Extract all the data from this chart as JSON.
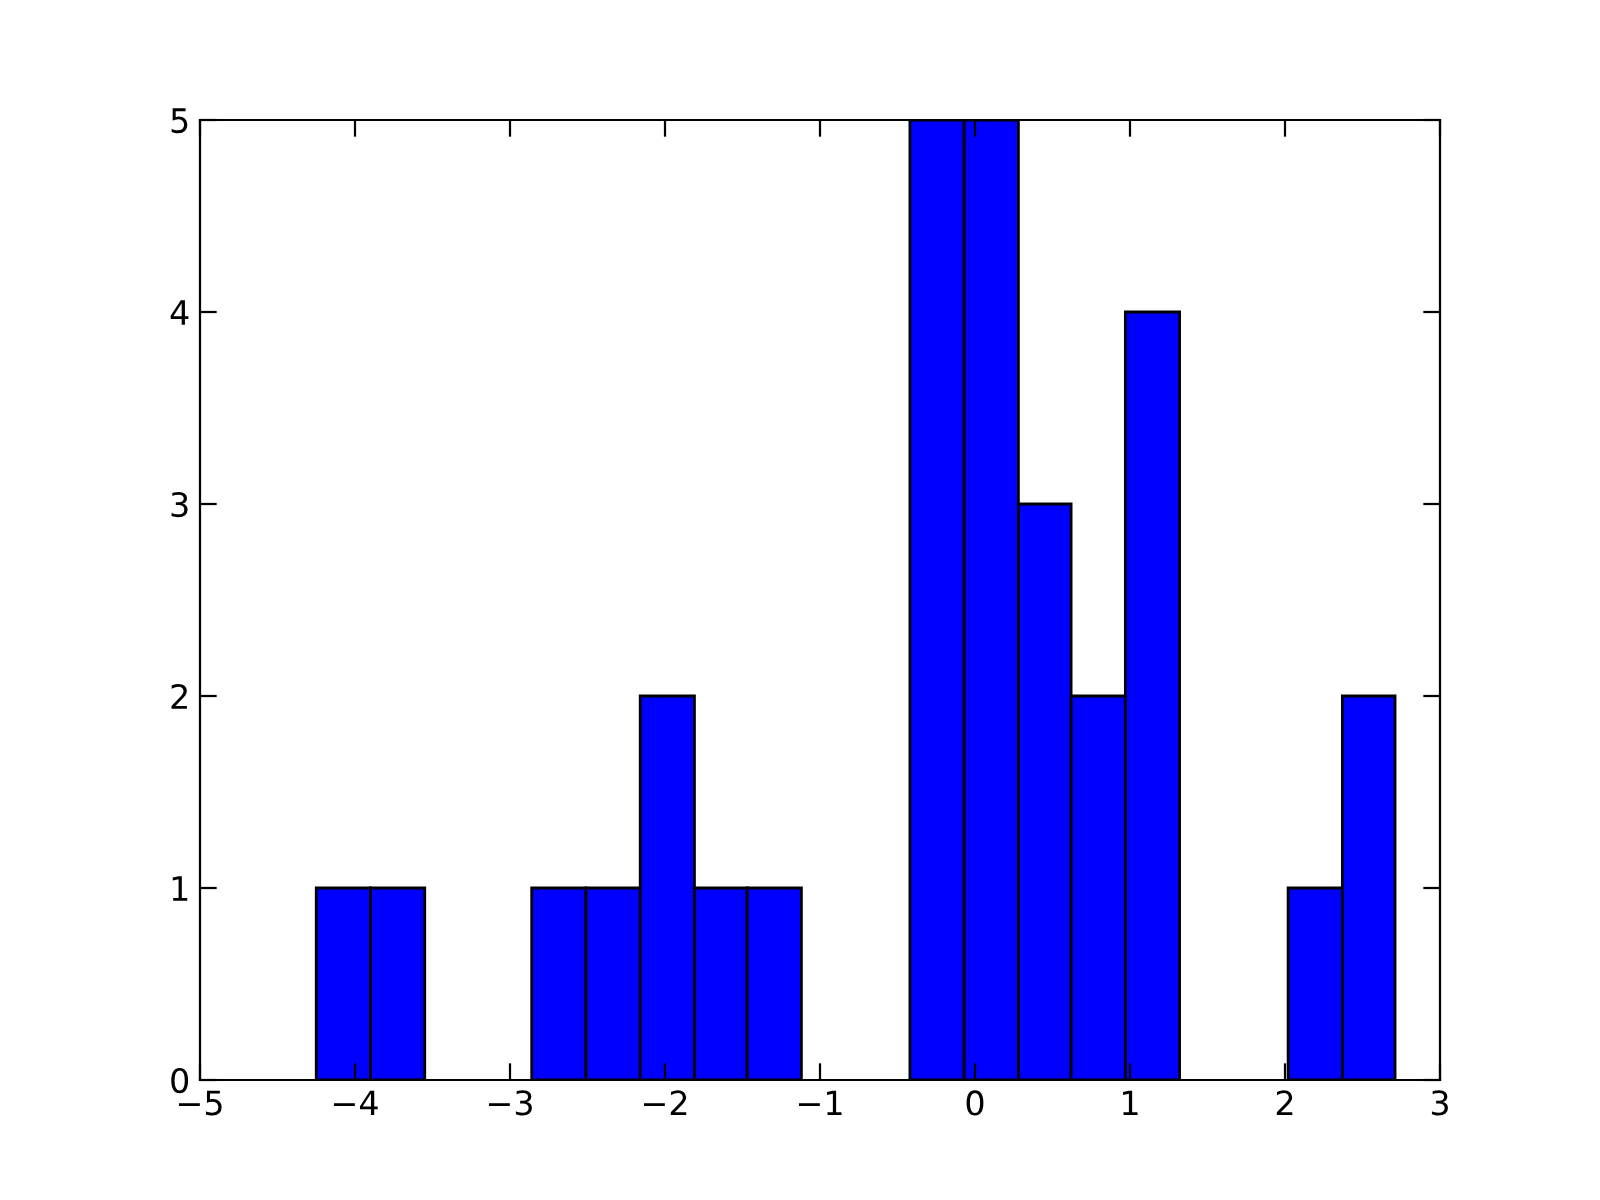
{
  "chart_data": {
    "type": "histogram",
    "bins": [
      -4.25,
      -3.9,
      -3.55,
      -2.86,
      -2.51,
      -2.16,
      -1.81,
      -1.47,
      -1.12,
      -0.42,
      -0.07,
      0.28,
      0.62,
      0.97,
      1.32,
      2.02,
      2.37,
      2.71
    ],
    "values": [
      1,
      1,
      0,
      1,
      1,
      2,
      1,
      1,
      0,
      5,
      5,
      3,
      2,
      4,
      0,
      1,
      2
    ],
    "color": "#0000ff",
    "xlim": [
      -5,
      3
    ],
    "xticks": [
      {
        "value": -5,
        "label": "−5"
      },
      {
        "value": -4,
        "label": "−4"
      },
      {
        "value": -3,
        "label": "−3"
      },
      {
        "value": -2,
        "label": "−2"
      },
      {
        "value": -1,
        "label": "−1"
      },
      0,
      1,
      2,
      3
    ],
    "ylim": [
      0,
      5
    ],
    "yticks": [
      0,
      1,
      2,
      3,
      4,
      5
    ],
    "grid": false
  }
}
